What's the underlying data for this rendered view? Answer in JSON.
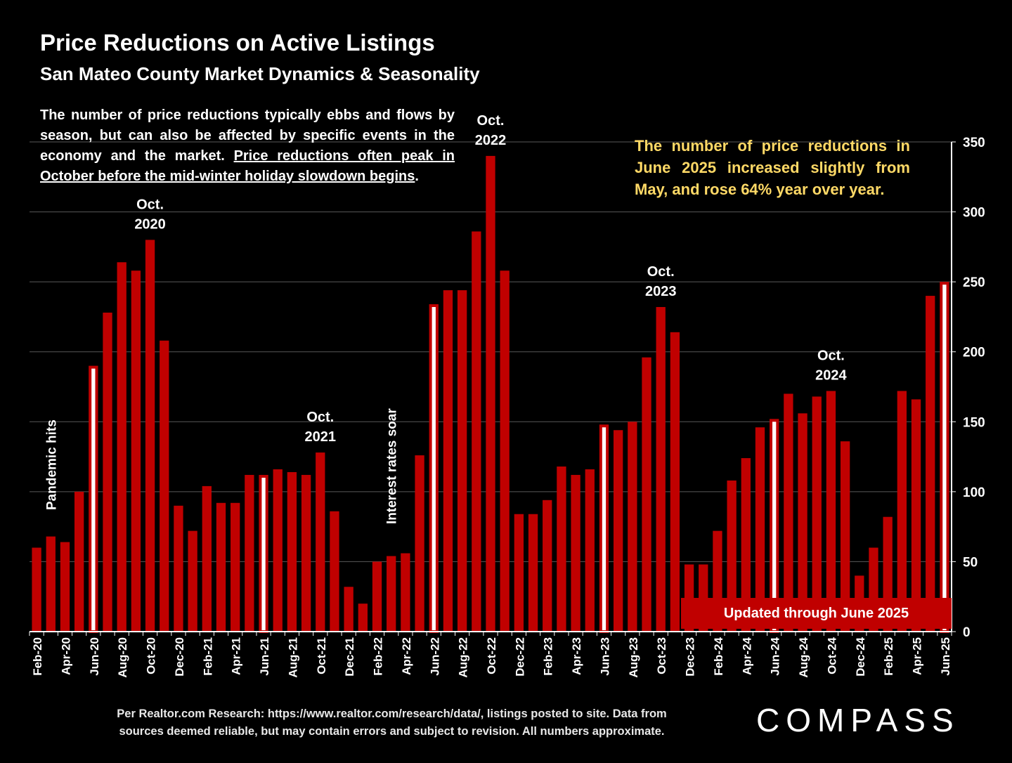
{
  "header": {
    "title": "Price Reductions on Active Listings",
    "subtitle": "San Mateo County Market Dynamics & Seasonality"
  },
  "intro": {
    "plain": "The number of price reductions typically ebbs and flows by season, but can also be affected by specific events in the economy and the market.",
    "underlined": "Price reductions often peak in October before the mid-winter holiday slowdown begins",
    "end": "."
  },
  "callout": "The number of price reductions in June 2025 increased slightly from May, and rose 64% year over year.",
  "updated_banner": "Updated through June 2025",
  "footnote": {
    "line1": "Per Realtor.com Research:  https://www.realtor.com/research/data/, listings posted to site. Data from",
    "line2": "sources deemed reliable, but may contain errors and subject to revision. All numbers approximate."
  },
  "logo": "COMPASS",
  "colors": {
    "bar": "#c00000",
    "bar_highlight": "#ffffff",
    "callout_text": "#ffd966",
    "gridline": "#595959",
    "background": "#000000"
  },
  "chart_data": {
    "type": "bar",
    "title": "Price Reductions on Active Listings",
    "xlabel": "",
    "ylabel": "",
    "ylim": [
      0,
      350
    ],
    "yticks": [
      0,
      50,
      100,
      150,
      200,
      250,
      300,
      350
    ],
    "grid": true,
    "y_axis_side": "right",
    "categories": [
      "Feb-20",
      "Mar-20",
      "Apr-20",
      "May-20",
      "Jun-20",
      "Jul-20",
      "Aug-20",
      "Sep-20",
      "Oct-20",
      "Nov-20",
      "Dec-20",
      "Jan-21",
      "Feb-21",
      "Mar-21",
      "Apr-21",
      "May-21",
      "Jun-21",
      "Jul-21",
      "Aug-21",
      "Sep-21",
      "Oct-21",
      "Nov-21",
      "Dec-21",
      "Jan-22",
      "Feb-22",
      "Mar-22",
      "Apr-22",
      "May-22",
      "Jun-22",
      "Jul-22",
      "Aug-22",
      "Sep-22",
      "Oct-22",
      "Nov-22",
      "Dec-22",
      "Jan-23",
      "Feb-23",
      "Mar-23",
      "Apr-23",
      "May-23",
      "Jun-23",
      "Jul-23",
      "Aug-23",
      "Sep-23",
      "Oct-23",
      "Nov-23",
      "Dec-23",
      "Jan-24",
      "Feb-24",
      "Mar-24",
      "Apr-24",
      "May-24",
      "Jun-24",
      "Jul-24",
      "Aug-24",
      "Sep-24",
      "Oct-24",
      "Nov-24",
      "Dec-24",
      "Jan-25",
      "Feb-25",
      "Mar-25",
      "Apr-25",
      "May-25",
      "Jun-25"
    ],
    "values": [
      60,
      68,
      64,
      100,
      190,
      228,
      264,
      258,
      280,
      208,
      90,
      72,
      104,
      92,
      92,
      112,
      112,
      116,
      114,
      112,
      128,
      86,
      32,
      20,
      50,
      54,
      56,
      126,
      234,
      244,
      244,
      286,
      340,
      258,
      84,
      84,
      94,
      118,
      112,
      116,
      148,
      144,
      150,
      196,
      232,
      214,
      48,
      48,
      72,
      108,
      124,
      146,
      152,
      170,
      156,
      168,
      172,
      136,
      40,
      60,
      82,
      172,
      166,
      240,
      250
    ],
    "highlighted": [
      "Jun-20",
      "Jun-21",
      "Jun-22",
      "Jun-23",
      "Jun-24",
      "Jun-25"
    ],
    "tick_labels": [
      "Feb-20",
      "Apr-20",
      "Jun-20",
      "Aug-20",
      "Oct-20",
      "Dec-20",
      "Feb-21",
      "Apr-21",
      "Jun-21",
      "Aug-21",
      "Oct-21",
      "Dec-21",
      "Feb-22",
      "Apr-22",
      "Jun-22",
      "Aug-22",
      "Oct-22",
      "Dec-22",
      "Feb-23",
      "Apr-23",
      "Jun-23",
      "Aug-23",
      "Oct-23",
      "Dec-23",
      "Feb-24",
      "Apr-24",
      "Jun-24",
      "Aug-24",
      "Oct-24",
      "Dec-24",
      "Feb-25",
      "Apr-25",
      "Jun-25"
    ],
    "annotations": [
      {
        "category": "Oct-20",
        "line1": "Oct.",
        "line2": "2020"
      },
      {
        "category": "Oct-21",
        "line1": "Oct.",
        "line2": "2021"
      },
      {
        "category": "Oct-22",
        "line1": "Oct.",
        "line2": "2022"
      },
      {
        "category": "Oct-23",
        "line1": "Oct.",
        "line2": "2023"
      },
      {
        "category": "Oct-24",
        "line1": "Oct.",
        "line2": "2024"
      }
    ],
    "vertical_annotations": [
      {
        "category": "Mar-20",
        "text": "Pandemic hits"
      },
      {
        "category": "Mar-22",
        "text": "Interest rates soar"
      }
    ]
  }
}
